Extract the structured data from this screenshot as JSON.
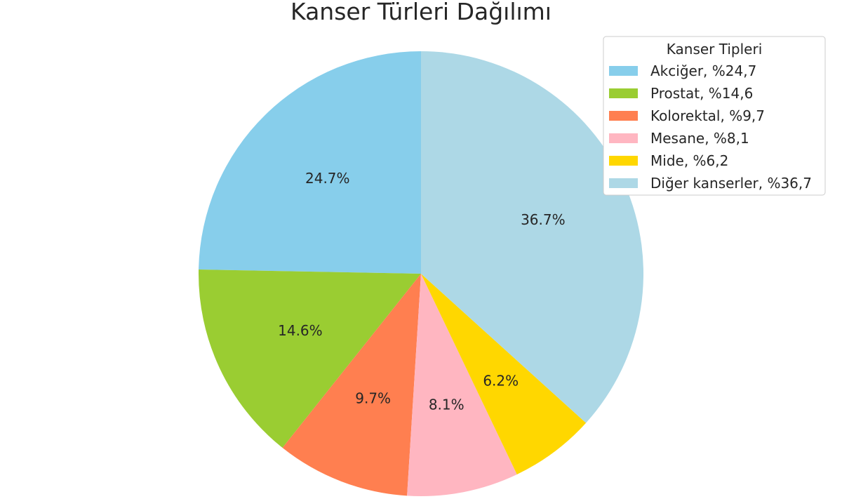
{
  "chart_data": {
    "type": "pie",
    "title": "Kanser Türleri Dağılımı",
    "legend_title": "Kanser Tipleri",
    "legend_position": "top-right",
    "start_angle_deg": 90,
    "direction": "counterclockwise",
    "slices": [
      {
        "category": "Akciğer",
        "value": 24.7,
        "legend_label": "Akciğer, %24,7",
        "label": "24.7%",
        "color": "#87CEEB"
      },
      {
        "category": "Prostat",
        "value": 14.6,
        "legend_label": "Prostat, %14,6",
        "label": "14.6%",
        "color": "#9ACD32"
      },
      {
        "category": "Kolorektal",
        "value": 9.7,
        "legend_label": "Kolorektal, %9,7",
        "label": "9.7%",
        "color": "#FF7F50"
      },
      {
        "category": "Mesane",
        "value": 8.1,
        "legend_label": "Mesane, %8,1",
        "label": "8.1%",
        "color": "#FFB6C1"
      },
      {
        "category": "Mide",
        "value": 6.2,
        "legend_label": "Mide, %6,2",
        "label": "6.2%",
        "color": "#FFD700"
      },
      {
        "category": "Diğer kanserler",
        "value": 36.7,
        "legend_label": "Diğer kanserler, %36,7",
        "label": "36.7%",
        "color": "#ADD8E6"
      }
    ]
  }
}
